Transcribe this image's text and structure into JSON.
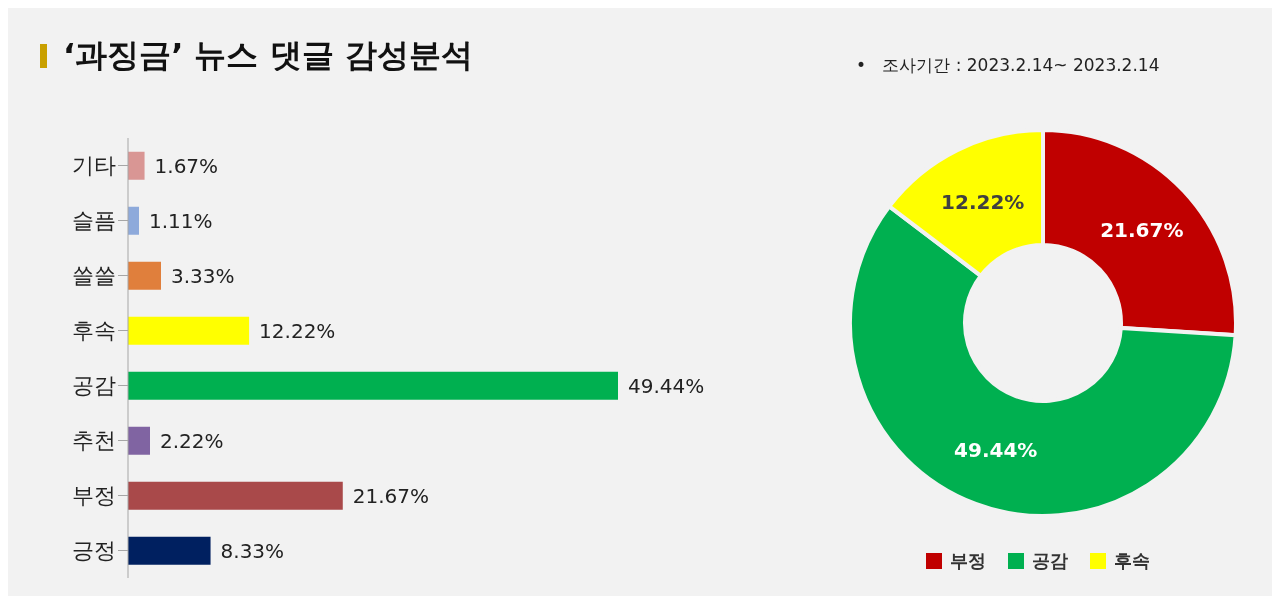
{
  "chart_data": [
    {
      "type": "bar",
      "orientation": "horizontal",
      "title": "‘과징금’ 뉴스 댓글 감성분석",
      "categories": [
        "기타",
        "슬픔",
        "쓸쓸",
        "후속",
        "공감",
        "추천",
        "부정",
        "긍정"
      ],
      "values": [
        1.67,
        1.11,
        3.33,
        12.22,
        49.44,
        2.22,
        21.67,
        8.33
      ],
      "colors": [
        "#d99694",
        "#8eaadb",
        "#e07f3c",
        "#ffff00",
        "#00b050",
        "#8064a2",
        "#a9494a",
        "#002060"
      ],
      "value_labels": [
        "1.67%",
        "1.11%",
        "3.33%",
        "12.22%",
        "49.44%",
        "2.22%",
        "21.67%",
        "8.33%"
      ],
      "grid": false
    },
    {
      "type": "donut",
      "annotations": [
        "•   조사기간 : 2023.2.14~ 2023.2.14"
      ],
      "categories": [
        "부정",
        "공감",
        "후속"
      ],
      "values": [
        21.67,
        49.44,
        12.22
      ],
      "colors": [
        "#c00000",
        "#00b050",
        "#ffff00"
      ],
      "value_labels": [
        "21.67%",
        "49.44%",
        "12.22%"
      ],
      "legend": "bottom"
    }
  ]
}
